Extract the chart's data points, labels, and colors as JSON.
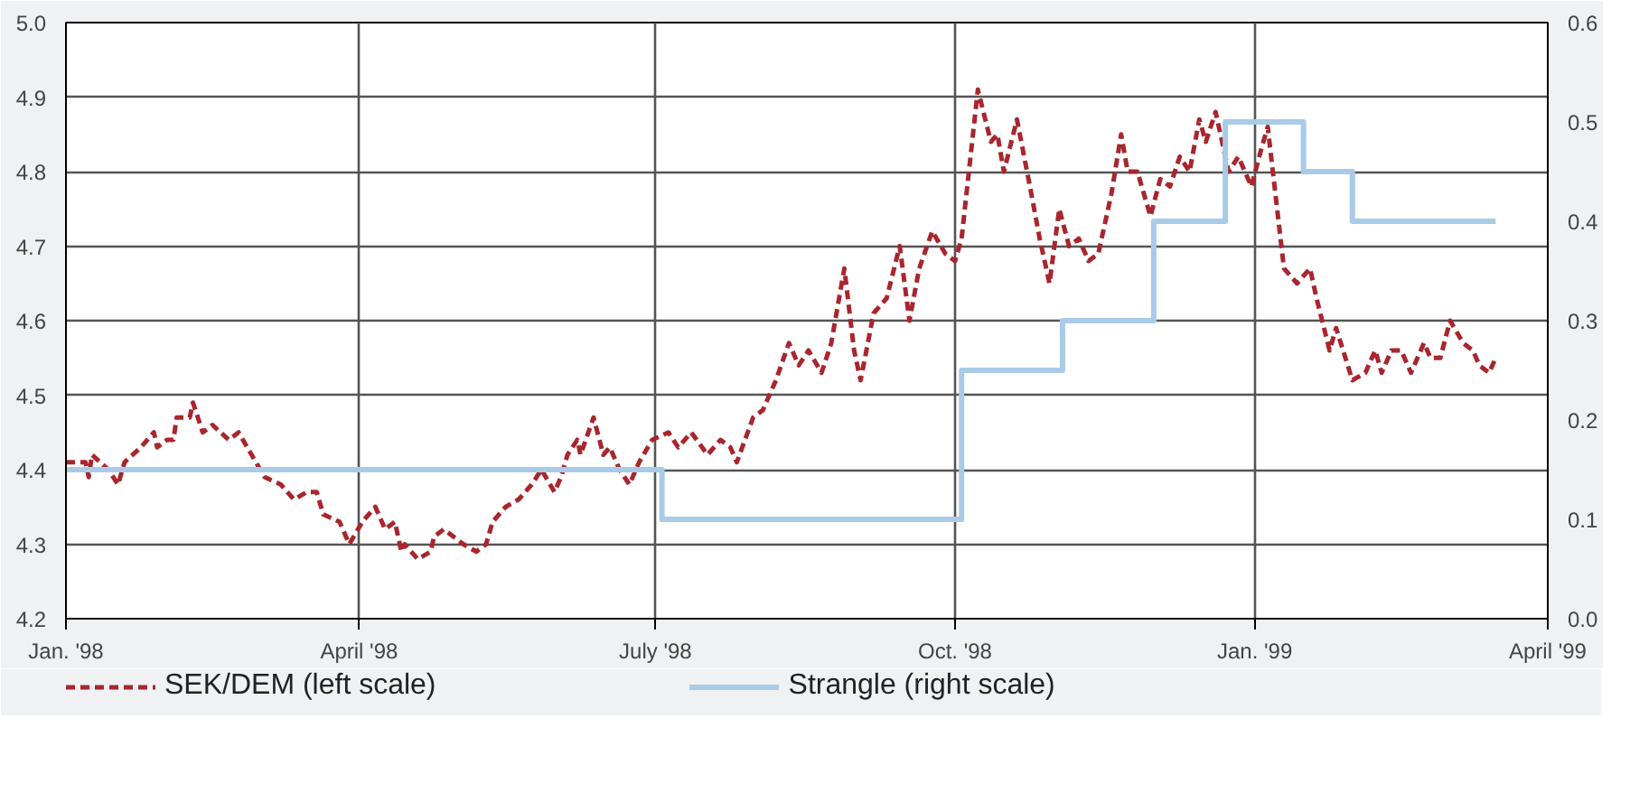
{
  "chart_data": {
    "type": "line",
    "xlim": [
      "1998-01-01",
      "1999-04-01"
    ],
    "xticks": [
      {
        "value": "1998-01-01",
        "label": "Jan. '98"
      },
      {
        "value": "1998-04-01",
        "label": "April '98"
      },
      {
        "value": "1998-07-01",
        "label": "July '98"
      },
      {
        "value": "1998-10-01",
        "label": "Oct. '98"
      },
      {
        "value": "1999-01-01",
        "label": "Jan. '99"
      },
      {
        "value": "1999-04-01",
        "label": "April '99"
      }
    ],
    "ylim": [
      4.2,
      5.0
    ],
    "yticks": [
      4.2,
      4.3,
      4.4,
      4.5,
      4.6,
      4.7,
      4.8,
      4.9,
      {
        "value": 5.0,
        "label": "5.0"
      }
    ],
    "y2lim": [
      0,
      0.6
    ],
    "y2ticks": [
      {
        "value": 0,
        "label": "0.0"
      },
      0.1,
      0.2,
      0.3,
      0.4,
      0.5,
      0.6
    ],
    "grid": true,
    "legend": "bottom",
    "series": [
      {
        "name": "SEK/DEM (left scale)",
        "color": "#a8262e",
        "line_style": "dashed",
        "x": [
          "1998-01-01",
          "1998-01-07",
          "1998-01-08",
          "1998-01-09",
          "1998-01-14",
          "1998-01-17",
          "1998-01-19",
          "1998-01-24",
          "1998-01-28",
          "1998-01-29",
          "1998-02-01",
          "1998-02-03",
          "1998-02-04",
          "1998-02-08",
          "1998-02-09",
          "1998-02-12",
          "1998-02-15",
          "1998-02-20",
          "1998-02-23",
          "1998-02-27",
          "1998-03-03",
          "1998-03-08",
          "1998-03-12",
          "1998-03-16",
          "1998-03-19",
          "1998-03-21",
          "1998-03-26",
          "1998-03-29",
          "1998-04-02",
          "1998-04-04",
          "1998-04-06",
          "1998-04-09",
          "1998-04-12",
          "1998-04-14",
          "1998-04-15",
          "1998-04-19",
          "1998-04-23",
          "1998-04-24",
          "1998-04-27",
          "1998-04-30",
          "1998-05-03",
          "1998-05-07",
          "1998-05-10",
          "1998-05-12",
          "1998-05-16",
          "1998-05-20",
          "1998-05-24",
          "1998-05-27",
          "1998-05-31",
          "1998-06-02",
          "1998-06-04",
          "1998-06-07",
          "1998-06-08",
          "1998-06-12",
          "1998-06-15",
          "1998-06-17",
          "1998-06-20",
          "1998-06-23",
          "1998-06-26",
          "1998-06-30",
          "1998-07-05",
          "1998-07-08",
          "1998-07-12",
          "1998-07-17",
          "1998-07-21",
          "1998-07-24",
          "1998-07-26",
          "1998-07-31",
          "1998-08-03",
          "1998-08-07",
          "1998-08-11",
          "1998-08-14",
          "1998-08-17",
          "1998-08-21",
          "1998-08-24",
          "1998-08-28",
          "1998-08-31",
          "1998-09-02",
          "1998-09-06",
          "1998-09-10",
          "1998-09-14",
          "1998-09-17",
          "1998-09-20",
          "1998-09-24",
          "1998-09-28",
          "1998-10-01",
          "1998-10-03",
          "1998-10-08",
          "1998-10-12",
          "1998-10-14",
          "1998-10-16",
          "1998-10-20",
          "1998-10-24",
          "1998-10-27",
          "1998-10-30",
          "1998-11-02",
          "1998-11-05",
          "1998-11-08",
          "1998-11-11",
          "1998-11-14",
          "1998-11-18",
          "1998-11-21",
          "1998-11-23",
          "1998-11-26",
          "1998-11-30",
          "1998-12-03",
          "1998-12-06",
          "1998-12-09",
          "1998-12-12",
          "1998-12-15",
          "1998-12-17",
          "1998-12-20",
          "1998-12-22",
          "1998-12-24",
          "1998-12-27",
          "1998-12-31",
          "1999-01-03",
          "1999-01-05",
          "1999-01-10",
          "1999-01-14",
          "1999-01-18",
          "1999-01-20",
          "1999-01-24",
          "1999-01-26",
          "1999-01-31",
          "1999-02-04",
          "1999-02-07",
          "1999-02-09",
          "1999-02-12",
          "1999-02-15",
          "1999-02-18",
          "1999-02-22",
          "1999-02-24",
          "1999-02-27",
          "1999-03-02",
          "1999-03-06",
          "1999-03-09",
          "1999-03-11",
          "1999-03-14",
          "1999-03-16"
        ],
        "values": [
          4.41,
          4.41,
          4.39,
          4.42,
          4.4,
          4.38,
          4.41,
          4.43,
          4.45,
          4.43,
          4.44,
          4.44,
          4.47,
          4.47,
          4.49,
          4.45,
          4.46,
          4.44,
          4.45,
          4.42,
          4.39,
          4.38,
          4.36,
          4.37,
          4.37,
          4.34,
          4.33,
          4.3,
          4.33,
          4.34,
          4.35,
          4.32,
          4.33,
          4.29,
          4.3,
          4.28,
          4.29,
          4.31,
          4.32,
          4.31,
          4.3,
          4.29,
          4.3,
          4.33,
          4.35,
          4.36,
          4.38,
          4.4,
          4.37,
          4.39,
          4.42,
          4.44,
          4.42,
          4.47,
          4.42,
          4.43,
          4.4,
          4.38,
          4.41,
          4.44,
          4.45,
          4.43,
          4.45,
          4.42,
          4.44,
          4.43,
          4.41,
          4.47,
          4.48,
          4.52,
          4.57,
          4.54,
          4.56,
          4.53,
          4.57,
          4.67,
          4.56,
          4.52,
          4.61,
          4.63,
          4.7,
          4.6,
          4.67,
          4.72,
          4.69,
          4.68,
          4.71,
          4.91,
          4.84,
          4.85,
          4.8,
          4.87,
          4.78,
          4.71,
          4.65,
          4.75,
          4.7,
          4.71,
          4.68,
          4.69,
          4.77,
          4.85,
          4.8,
          4.8,
          4.74,
          4.79,
          4.78,
          4.82,
          4.8,
          4.87,
          4.84,
          4.88,
          4.84,
          4.8,
          4.82,
          4.78,
          4.83,
          4.86,
          4.67,
          4.65,
          4.67,
          4.63,
          4.56,
          4.59,
          4.52,
          4.53,
          4.56,
          4.53,
          4.56,
          4.56,
          4.53,
          4.57,
          4.55,
          4.55,
          4.6,
          4.57,
          4.56,
          4.54,
          4.53,
          4.55
        ]
      },
      {
        "name": "Strangle (right scale)",
        "color": "#a9cbe8",
        "type": "step",
        "axis": "y2",
        "line_style": "solid",
        "x": [
          "1998-01-01",
          "1998-07-03",
          "1998-10-03",
          "1998-11-03",
          "1998-12-01",
          "1998-12-23",
          "1999-01-16",
          "1999-01-31",
          "1999-03-16"
        ],
        "values": [
          0.15,
          0.1,
          0.25,
          0.3,
          0.4,
          0.5,
          0.45,
          0.4,
          0.4
        ]
      }
    ]
  }
}
